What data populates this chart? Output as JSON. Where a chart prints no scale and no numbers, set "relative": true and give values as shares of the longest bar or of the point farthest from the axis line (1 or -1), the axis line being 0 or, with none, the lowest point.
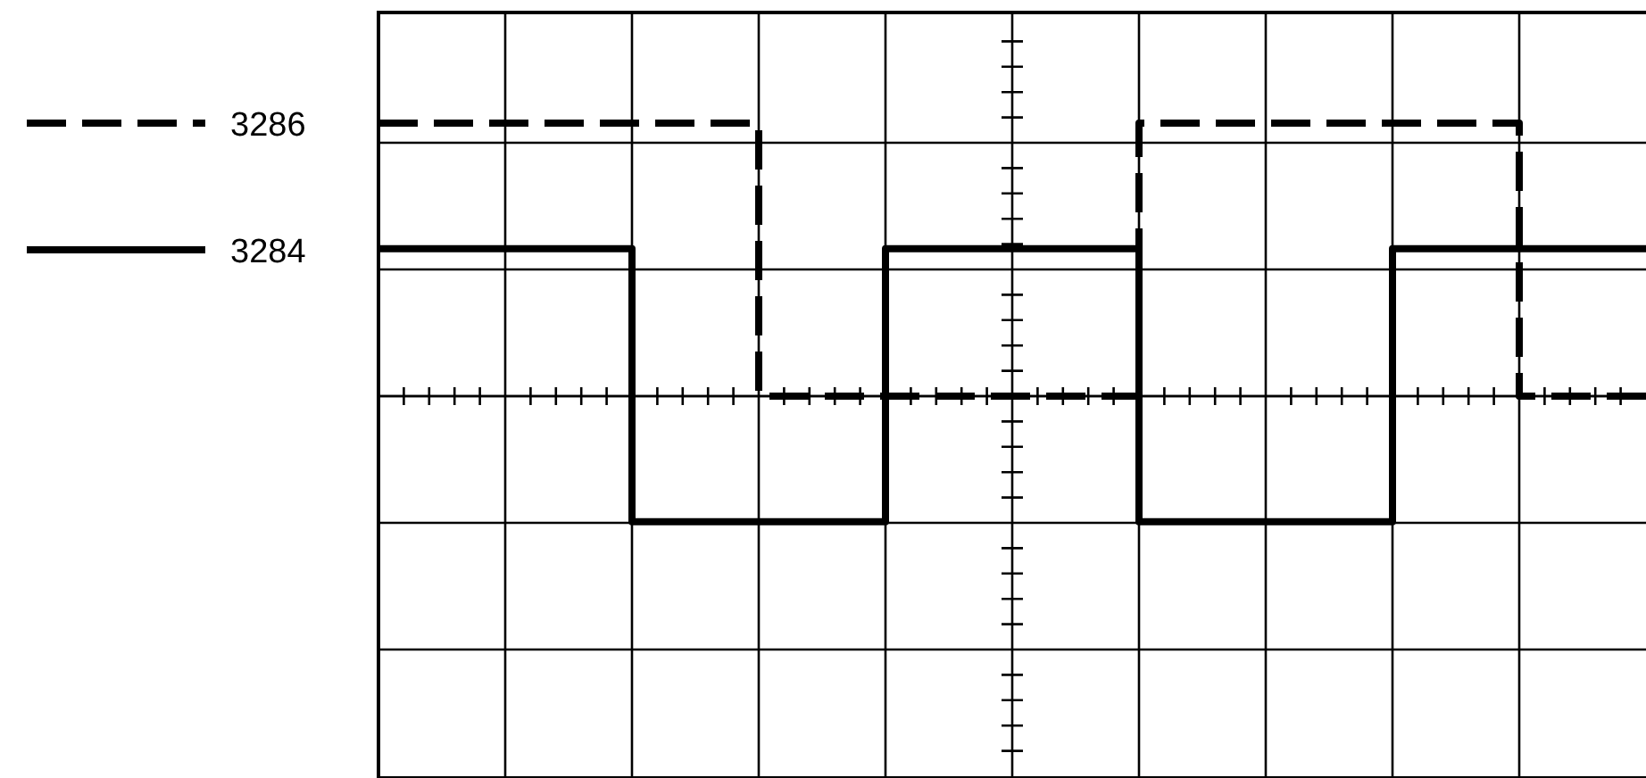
{
  "chart_data": {
    "type": "step",
    "relative": true,
    "categories": [
      null,
      null,
      null,
      null,
      null,
      null,
      null,
      null,
      null,
      null,
      null
    ],
    "series": [
      {
        "name": "3286",
        "color": "#000000",
        "line_style": "dashed",
        "values": [
          1,
          1,
          1,
          0,
          0,
          0,
          1,
          1,
          1,
          0,
          0
        ]
      },
      {
        "name": "3284",
        "color": "#000000",
        "line_style": "solid",
        "values": [
          0.54,
          0.54,
          -0.46,
          -0.46,
          0.54,
          0.54,
          -0.46,
          -0.46,
          0.54,
          0.54,
          0.54
        ]
      }
    ],
    "grid": true,
    "legend": "left"
  }
}
